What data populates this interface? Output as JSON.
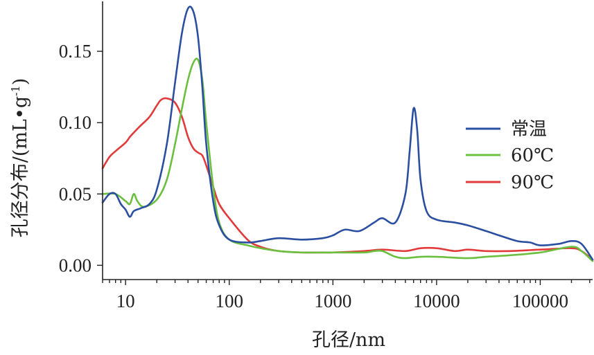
{
  "chart_data": {
    "type": "line",
    "xlabel": "孔径/nm",
    "ylabel": "孔径分布/(mL•g",
    "ylabel_sup": "-1",
    "ylabel_close": ")",
    "xscale": "log",
    "xlim": [
      6,
      320000
    ],
    "ylim": [
      -0.01,
      0.185
    ],
    "x_ticks": [
      10,
      100,
      1000,
      10000,
      100000
    ],
    "x_tick_labels": [
      "10",
      "100",
      "1000",
      "10000",
      "100000"
    ],
    "y_ticks": [
      0.0,
      0.05,
      0.1,
      0.15
    ],
    "y_tick_labels": [
      "0.00",
      "0.05",
      "0.10",
      "0.15"
    ],
    "grid": false,
    "legend_position": "right",
    "series": [
      {
        "name": "常温",
        "color": "#2b4fa0",
        "x": [
          6,
          7,
          8,
          9,
          10,
          11,
          12,
          14,
          17,
          20,
          25,
          30,
          35,
          40,
          45,
          50,
          55,
          60,
          70,
          80,
          100,
          150,
          200,
          300,
          500,
          800,
          1000,
          1300,
          1800,
          2500,
          3000,
          4000,
          5000,
          5500,
          6000,
          6500,
          7000,
          8000,
          10000,
          15000,
          20000,
          30000,
          40000,
          60000,
          80000,
          100000,
          150000,
          200000,
          250000,
          320000
        ],
        "y": [
          0.044,
          0.05,
          0.05,
          0.043,
          0.039,
          0.034,
          0.038,
          0.04,
          0.043,
          0.053,
          0.085,
          0.128,
          0.163,
          0.18,
          0.178,
          0.16,
          0.125,
          0.085,
          0.045,
          0.028,
          0.018,
          0.016,
          0.017,
          0.019,
          0.018,
          0.019,
          0.021,
          0.025,
          0.024,
          0.03,
          0.033,
          0.03,
          0.05,
          0.08,
          0.11,
          0.095,
          0.06,
          0.038,
          0.032,
          0.03,
          0.028,
          0.024,
          0.021,
          0.017,
          0.016,
          0.014,
          0.015,
          0.017,
          0.015,
          0.004
        ]
      },
      {
        "name": "60℃",
        "color": "#6bbf3e",
        "x": [
          6,
          8,
          10,
          11,
          12,
          13,
          15,
          20,
          25,
          30,
          35,
          40,
          45,
          50,
          55,
          60,
          70,
          80,
          100,
          150,
          200,
          300,
          500,
          1000,
          2000,
          2500,
          3000,
          4000,
          5000,
          7000,
          10000,
          20000,
          30000,
          50000,
          100000,
          200000,
          250000,
          320000
        ],
        "y": [
          0.05,
          0.05,
          0.045,
          0.043,
          0.05,
          0.045,
          0.041,
          0.046,
          0.06,
          0.085,
          0.11,
          0.13,
          0.142,
          0.144,
          0.13,
          0.1,
          0.055,
          0.03,
          0.018,
          0.014,
          0.012,
          0.01,
          0.009,
          0.009,
          0.009,
          0.01,
          0.01,
          0.006,
          0.005,
          0.006,
          0.006,
          0.005,
          0.006,
          0.007,
          0.009,
          0.013,
          0.01,
          0.003
        ]
      },
      {
        "name": "90℃",
        "color": "#e23a3a",
        "x": [
          6,
          7,
          8,
          10,
          11,
          12,
          14,
          17,
          20,
          22,
          25,
          30,
          35,
          40,
          45,
          50,
          55,
          60,
          70,
          80,
          100,
          150,
          200,
          300,
          500,
          800,
          1000,
          2000,
          3000,
          5000,
          7000,
          10000,
          15000,
          20000,
          30000,
          50000,
          100000,
          200000,
          250000,
          320000
        ],
        "y": [
          0.068,
          0.076,
          0.08,
          0.086,
          0.09,
          0.093,
          0.098,
          0.104,
          0.112,
          0.116,
          0.117,
          0.114,
          0.104,
          0.09,
          0.082,
          0.079,
          0.077,
          0.07,
          0.055,
          0.043,
          0.033,
          0.018,
          0.013,
          0.01,
          0.009,
          0.009,
          0.009,
          0.01,
          0.011,
          0.01,
          0.012,
          0.012,
          0.01,
          0.011,
          0.01,
          0.01,
          0.011,
          0.012,
          0.01,
          0.004
        ]
      }
    ]
  }
}
